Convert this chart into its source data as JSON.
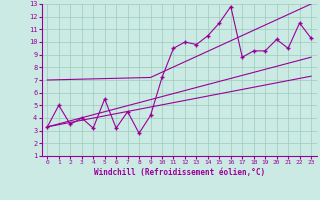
{
  "xlabel": "Windchill (Refroidissement éolien,°C)",
  "xlim": [
    -0.5,
    23.5
  ],
  "ylim": [
    1,
    13
  ],
  "xticks": [
    0,
    1,
    2,
    3,
    4,
    5,
    6,
    7,
    8,
    9,
    10,
    11,
    12,
    13,
    14,
    15,
    16,
    17,
    18,
    19,
    20,
    21,
    22,
    23
  ],
  "yticks": [
    1,
    2,
    3,
    4,
    5,
    6,
    7,
    8,
    9,
    10,
    11,
    12,
    13
  ],
  "bg_color": "#cceae4",
  "line_color": "#990099",
  "grid_color": "#99ccbb",
  "font_color": "#990099",
  "zigzag_x": [
    0,
    1,
    2,
    3,
    4,
    5,
    6,
    7,
    8,
    9,
    10,
    11,
    12,
    13,
    14,
    15,
    16,
    17,
    18,
    19,
    20,
    21,
    22,
    23
  ],
  "zigzag_y": [
    3.3,
    5.0,
    3.5,
    4.0,
    3.2,
    5.5,
    3.2,
    4.5,
    2.8,
    4.2,
    7.2,
    9.5,
    10.0,
    9.8,
    10.5,
    11.5,
    12.8,
    8.8,
    9.3,
    9.3,
    10.2,
    9.5,
    11.5,
    10.3
  ],
  "upper_line_x": [
    0,
    9,
    23
  ],
  "upper_line_y": [
    7.0,
    7.2,
    13.0
  ],
  "lower_line_x": [
    0,
    23
  ],
  "lower_line_y": [
    3.3,
    8.8
  ],
  "middle_line_x": [
    0,
    23
  ],
  "middle_line_y": [
    3.3,
    7.3
  ]
}
